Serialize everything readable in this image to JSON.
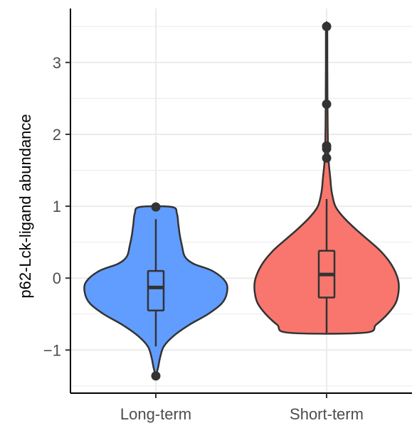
{
  "chart_data": {
    "type": "violin",
    "title": "",
    "xlabel": "",
    "ylabel": "p62-Lck-ligand abundance",
    "categories": [
      "Long-term",
      "Short-term"
    ],
    "ylim": [
      -1.6,
      3.75
    ],
    "yticks": [
      -1,
      0,
      1,
      2,
      3
    ],
    "ytick_labels": [
      "−1",
      "0",
      "1",
      "2",
      "3"
    ],
    "grid": true,
    "legend": "none",
    "series": [
      {
        "category": "Long-term",
        "color": "#619CFF",
        "box": {
          "min": -0.95,
          "q1": -0.45,
          "median": -0.13,
          "q3": 0.1,
          "max": 0.82
        },
        "outliers": [
          0.99,
          -1.36
        ],
        "density": [
          [
            -1.36,
            0.0
          ],
          [
            -1.25,
            0.03
          ],
          [
            -1.1,
            0.06
          ],
          [
            -0.95,
            0.11
          ],
          [
            -0.8,
            0.25
          ],
          [
            -0.65,
            0.46
          ],
          [
            -0.5,
            0.72
          ],
          [
            -0.35,
            0.91
          ],
          [
            -0.2,
            0.98
          ],
          [
            -0.05,
            0.96
          ],
          [
            0.1,
            0.78
          ],
          [
            0.2,
            0.52
          ],
          [
            0.3,
            0.4
          ],
          [
            0.45,
            0.36
          ],
          [
            0.6,
            0.33
          ],
          [
            0.75,
            0.31
          ],
          [
            0.9,
            0.29
          ],
          [
            0.99,
            0.22
          ]
        ]
      },
      {
        "category": "Short-term",
        "color": "#F8766D",
        "box": {
          "min": -0.76,
          "q1": -0.27,
          "median": 0.05,
          "q3": 0.38,
          "max": 1.1
        },
        "outliers": [
          3.5,
          2.42,
          1.84,
          1.8,
          1.67
        ],
        "density": [
          [
            -0.76,
            0.52
          ],
          [
            -0.65,
            0.68
          ],
          [
            -0.5,
            0.84
          ],
          [
            -0.35,
            0.95
          ],
          [
            -0.2,
            0.99
          ],
          [
            -0.05,
            0.99
          ],
          [
            0.1,
            0.94
          ],
          [
            0.25,
            0.85
          ],
          [
            0.4,
            0.72
          ],
          [
            0.55,
            0.55
          ],
          [
            0.7,
            0.38
          ],
          [
            0.85,
            0.23
          ],
          [
            1.0,
            0.12
          ],
          [
            1.2,
            0.07
          ],
          [
            1.4,
            0.05
          ],
          [
            1.6,
            0.03
          ],
          [
            1.8,
            0.02
          ],
          [
            2.1,
            0.015
          ],
          [
            2.5,
            0.012
          ],
          [
            3.0,
            0.01
          ],
          [
            3.5,
            0.008
          ]
        ]
      }
    ]
  }
}
